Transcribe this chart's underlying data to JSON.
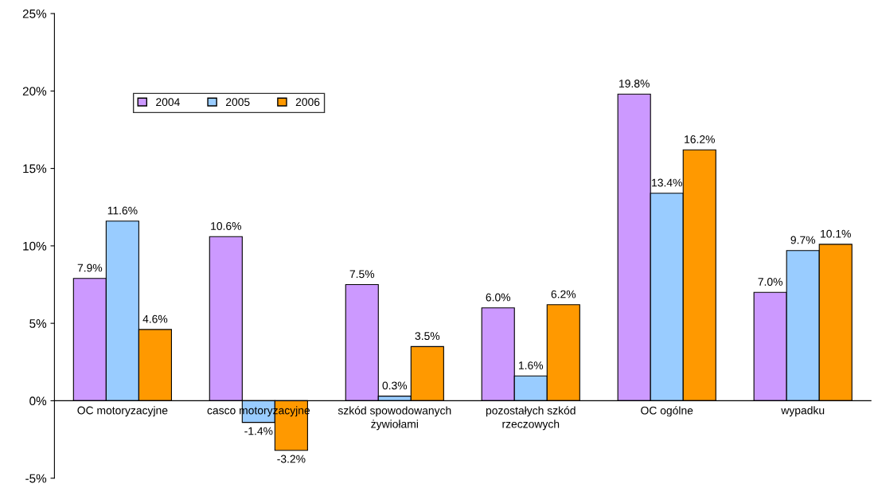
{
  "chart_data": {
    "type": "bar",
    "categories": [
      "OC motoryzacyjne",
      "casco motoryzacyjne",
      "szkód spowodowanych\nżywiołami",
      "pozostałych szkód\nrzeczowych",
      "OC ogólne",
      "wypadku"
    ],
    "series": [
      {
        "name": "2004",
        "color": "#cc99ff",
        "values": [
          7.9,
          10.6,
          7.5,
          6.0,
          19.8,
          7.0
        ],
        "value_labels": [
          "7.9%",
          "10.6%",
          "7.5%",
          "6.0%",
          "19.8%",
          "7.0%"
        ]
      },
      {
        "name": "2005",
        "color": "#99ccff",
        "values": [
          11.6,
          -1.4,
          0.3,
          1.6,
          13.4,
          9.7
        ],
        "value_labels": [
          "11.6%",
          "-1.4%",
          "0.3%",
          "1.6%",
          "13.4%",
          "9.7%"
        ]
      },
      {
        "name": "2006",
        "color": "#ff9900",
        "values": [
          4.6,
          -3.2,
          3.5,
          6.2,
          16.2,
          10.1
        ],
        "value_labels": [
          "4.6%",
          "-3.2%",
          "3.5%",
          "6.2%",
          "16.2%",
          "10.1%"
        ]
      }
    ],
    "ylim": [
      -5,
      25
    ],
    "yticks": [
      {
        "value": -5,
        "label": "-5%"
      },
      {
        "value": 0,
        "label": "0%"
      },
      {
        "value": 5,
        "label": "5%"
      },
      {
        "value": 10,
        "label": "10%"
      },
      {
        "value": 15,
        "label": "15%"
      },
      {
        "value": 20,
        "label": "20%"
      },
      {
        "value": 25,
        "label": "25%"
      }
    ],
    "grid": false,
    "legend": "top left"
  }
}
